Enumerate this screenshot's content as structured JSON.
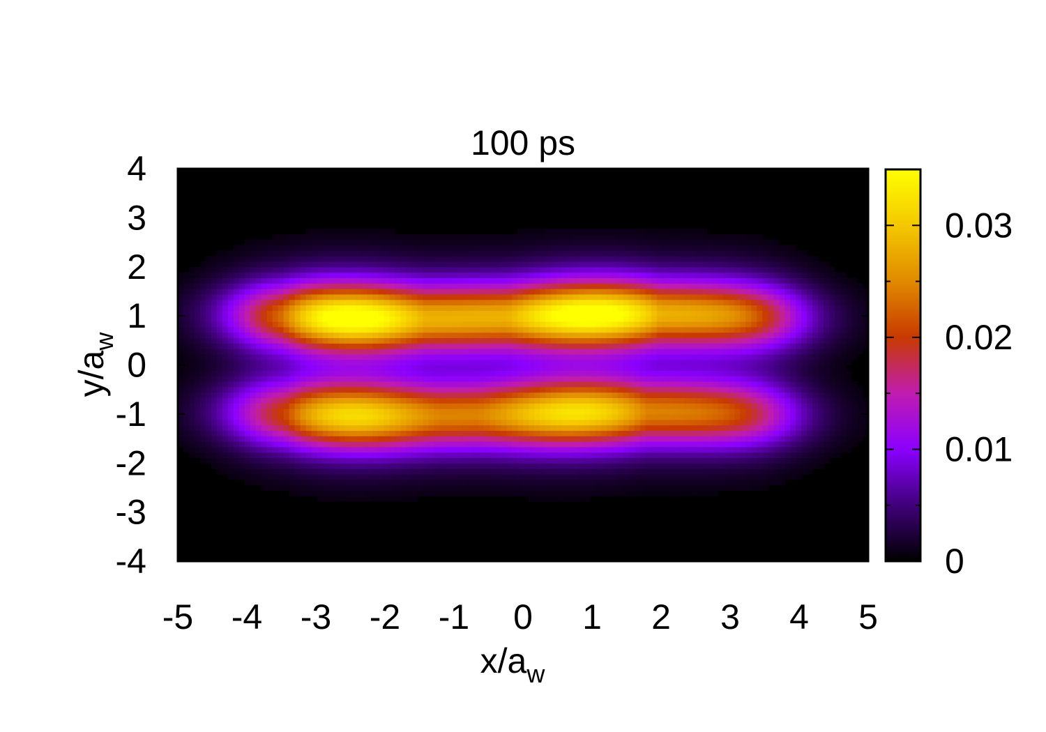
{
  "chart_data": {
    "type": "heatmap",
    "title": "100 ps",
    "xlabel": {
      "base": "x/a",
      "sub": "w"
    },
    "ylabel": {
      "base": "y/a",
      "sub": "w"
    },
    "xlim": [
      -5,
      5
    ],
    "ylim": [
      -4,
      4
    ],
    "x_ticks": [
      -5,
      -4,
      -3,
      -2,
      -1,
      0,
      1,
      2,
      3,
      4,
      5
    ],
    "y_ticks": [
      -4,
      -3,
      -2,
      -1,
      0,
      1,
      2,
      3,
      4
    ],
    "colorbar": {
      "range": [
        0,
        0.035
      ],
      "ticks": [
        0,
        0.01,
        0.02,
        0.03
      ],
      "tick_labels": [
        "0",
        "0.01",
        "0.02",
        "0.03"
      ],
      "minor_ticks": [
        0.005,
        0.015,
        0.025
      ],
      "colormap": [
        "#000000",
        "#40007a",
        "#8b00ff",
        "#c01cb0",
        "#c83a00",
        "#e08a00",
        "#f4c800",
        "#ffff00"
      ]
    },
    "grid": false,
    "description_of_field": {
      "lobes": [
        {
          "y_center": 1.0,
          "x_extent": [
            -4.0,
            3.8
          ],
          "peaks": [
            {
              "x": -2.6,
              "value": 0.035
            },
            {
              "x": 1.0,
              "value": 0.035
            }
          ]
        },
        {
          "y_center": -1.0,
          "x_extent": [
            -4.0,
            3.7
          ],
          "peaks": [
            {
              "x": -2.6,
              "value": 0.029
            },
            {
              "x": 0.8,
              "value": 0.03
            }
          ]
        }
      ],
      "midline_value_y0": 0.004
    }
  }
}
